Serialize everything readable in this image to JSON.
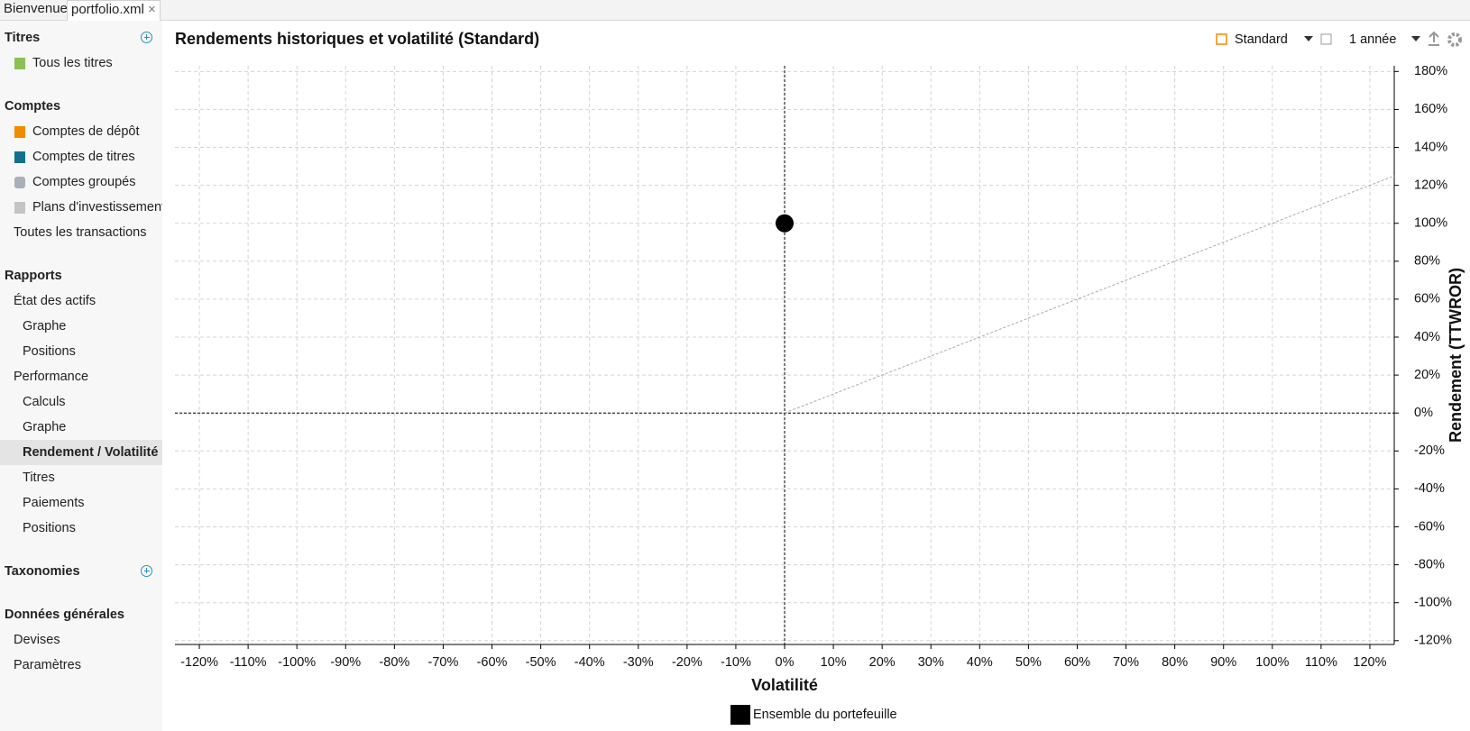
{
  "tabs": [
    "Bienvenue",
    "portfolio.xml"
  ],
  "toolbar": {
    "view": "Standard",
    "period": "1 année"
  },
  "sidebar": [
    {
      "title": "Titres",
      "items": [
        "Tous les titres"
      ]
    },
    {
      "title": "Comptes",
      "items": [
        "Comptes de dépôt",
        "Comptes de titres",
        "Comptes groupés",
        "Plans d'investissement",
        "Toutes les transactions"
      ]
    },
    {
      "title": "Rapports",
      "items": [
        "État des actifs",
        "Graphe",
        "Positions",
        "Performance",
        "Calculs",
        "Graphe",
        "Rendement / Volatilité",
        "Titres",
        "Paiements",
        "Positions"
      ]
    },
    {
      "title": "Taxonomies"
    },
    {
      "title": "Données générales",
      "items": [
        "Devises",
        "Paramètres"
      ]
    }
  ],
  "chart_data": {
    "type": "scatter",
    "title": "Rendements historiques et volatilité (Standard)",
    "x_label": "Volatilité",
    "y_label": "Rendement (TTWROR)",
    "series": [
      {
        "name": "Ensemble du portefeuille",
        "color": "#000000",
        "x": [
          0
        ],
        "values": [
          100
        ]
      }
    ],
    "xlim": [
      -125,
      125
    ],
    "ylim": [
      -122,
      183
    ],
    "xticks": [
      {
        "value": -120,
        "label": "-120%"
      },
      {
        "value": -110,
        "label": "-110%"
      },
      {
        "value": -100,
        "label": "-100%"
      },
      {
        "value": -90,
        "label": "-90%"
      },
      {
        "value": -80,
        "label": "-80%"
      },
      {
        "value": -70,
        "label": "-70%"
      },
      {
        "value": -60,
        "label": "-60%"
      },
      {
        "value": -50,
        "label": "-50%"
      },
      {
        "value": -40,
        "label": "-40%"
      },
      {
        "value": -30,
        "label": "-30%"
      },
      {
        "value": -20,
        "label": "-20%"
      },
      {
        "value": -10,
        "label": "-10%"
      },
      {
        "value": 0,
        "label": "0%"
      },
      {
        "value": 10,
        "label": "10%"
      },
      {
        "value": 20,
        "label": "20%"
      },
      {
        "value": 30,
        "label": "30%"
      },
      {
        "value": 40,
        "label": "40%"
      },
      {
        "value": 50,
        "label": "50%"
      },
      {
        "value": 60,
        "label": "60%"
      },
      {
        "value": 70,
        "label": "70%"
      },
      {
        "value": 80,
        "label": "80%"
      },
      {
        "value": 90,
        "label": "90%"
      },
      {
        "value": 100,
        "label": "100%"
      },
      {
        "value": 110,
        "label": "110%"
      },
      {
        "value": 120,
        "label": "120%"
      }
    ],
    "yticks": [
      {
        "value": -120,
        "label": "-120%"
      },
      {
        "value": -100,
        "label": "-100%"
      },
      {
        "value": -80,
        "label": "-80%"
      },
      {
        "value": -60,
        "label": "-60%"
      },
      {
        "value": -40,
        "label": "-40%"
      },
      {
        "value": -20,
        "label": "-20%"
      },
      {
        "value": 0,
        "label": "0%"
      },
      {
        "value": 20,
        "label": "20%"
      },
      {
        "value": 40,
        "label": "40%"
      },
      {
        "value": 60,
        "label": "60%"
      },
      {
        "value": 80,
        "label": "80%"
      },
      {
        "value": 100,
        "label": "100%"
      },
      {
        "value": 120,
        "label": "120%"
      },
      {
        "value": 140,
        "label": "140%"
      },
      {
        "value": 160,
        "label": "160%"
      },
      {
        "value": 180,
        "label": "180%"
      }
    ],
    "grid": true,
    "legend": "bottom"
  }
}
